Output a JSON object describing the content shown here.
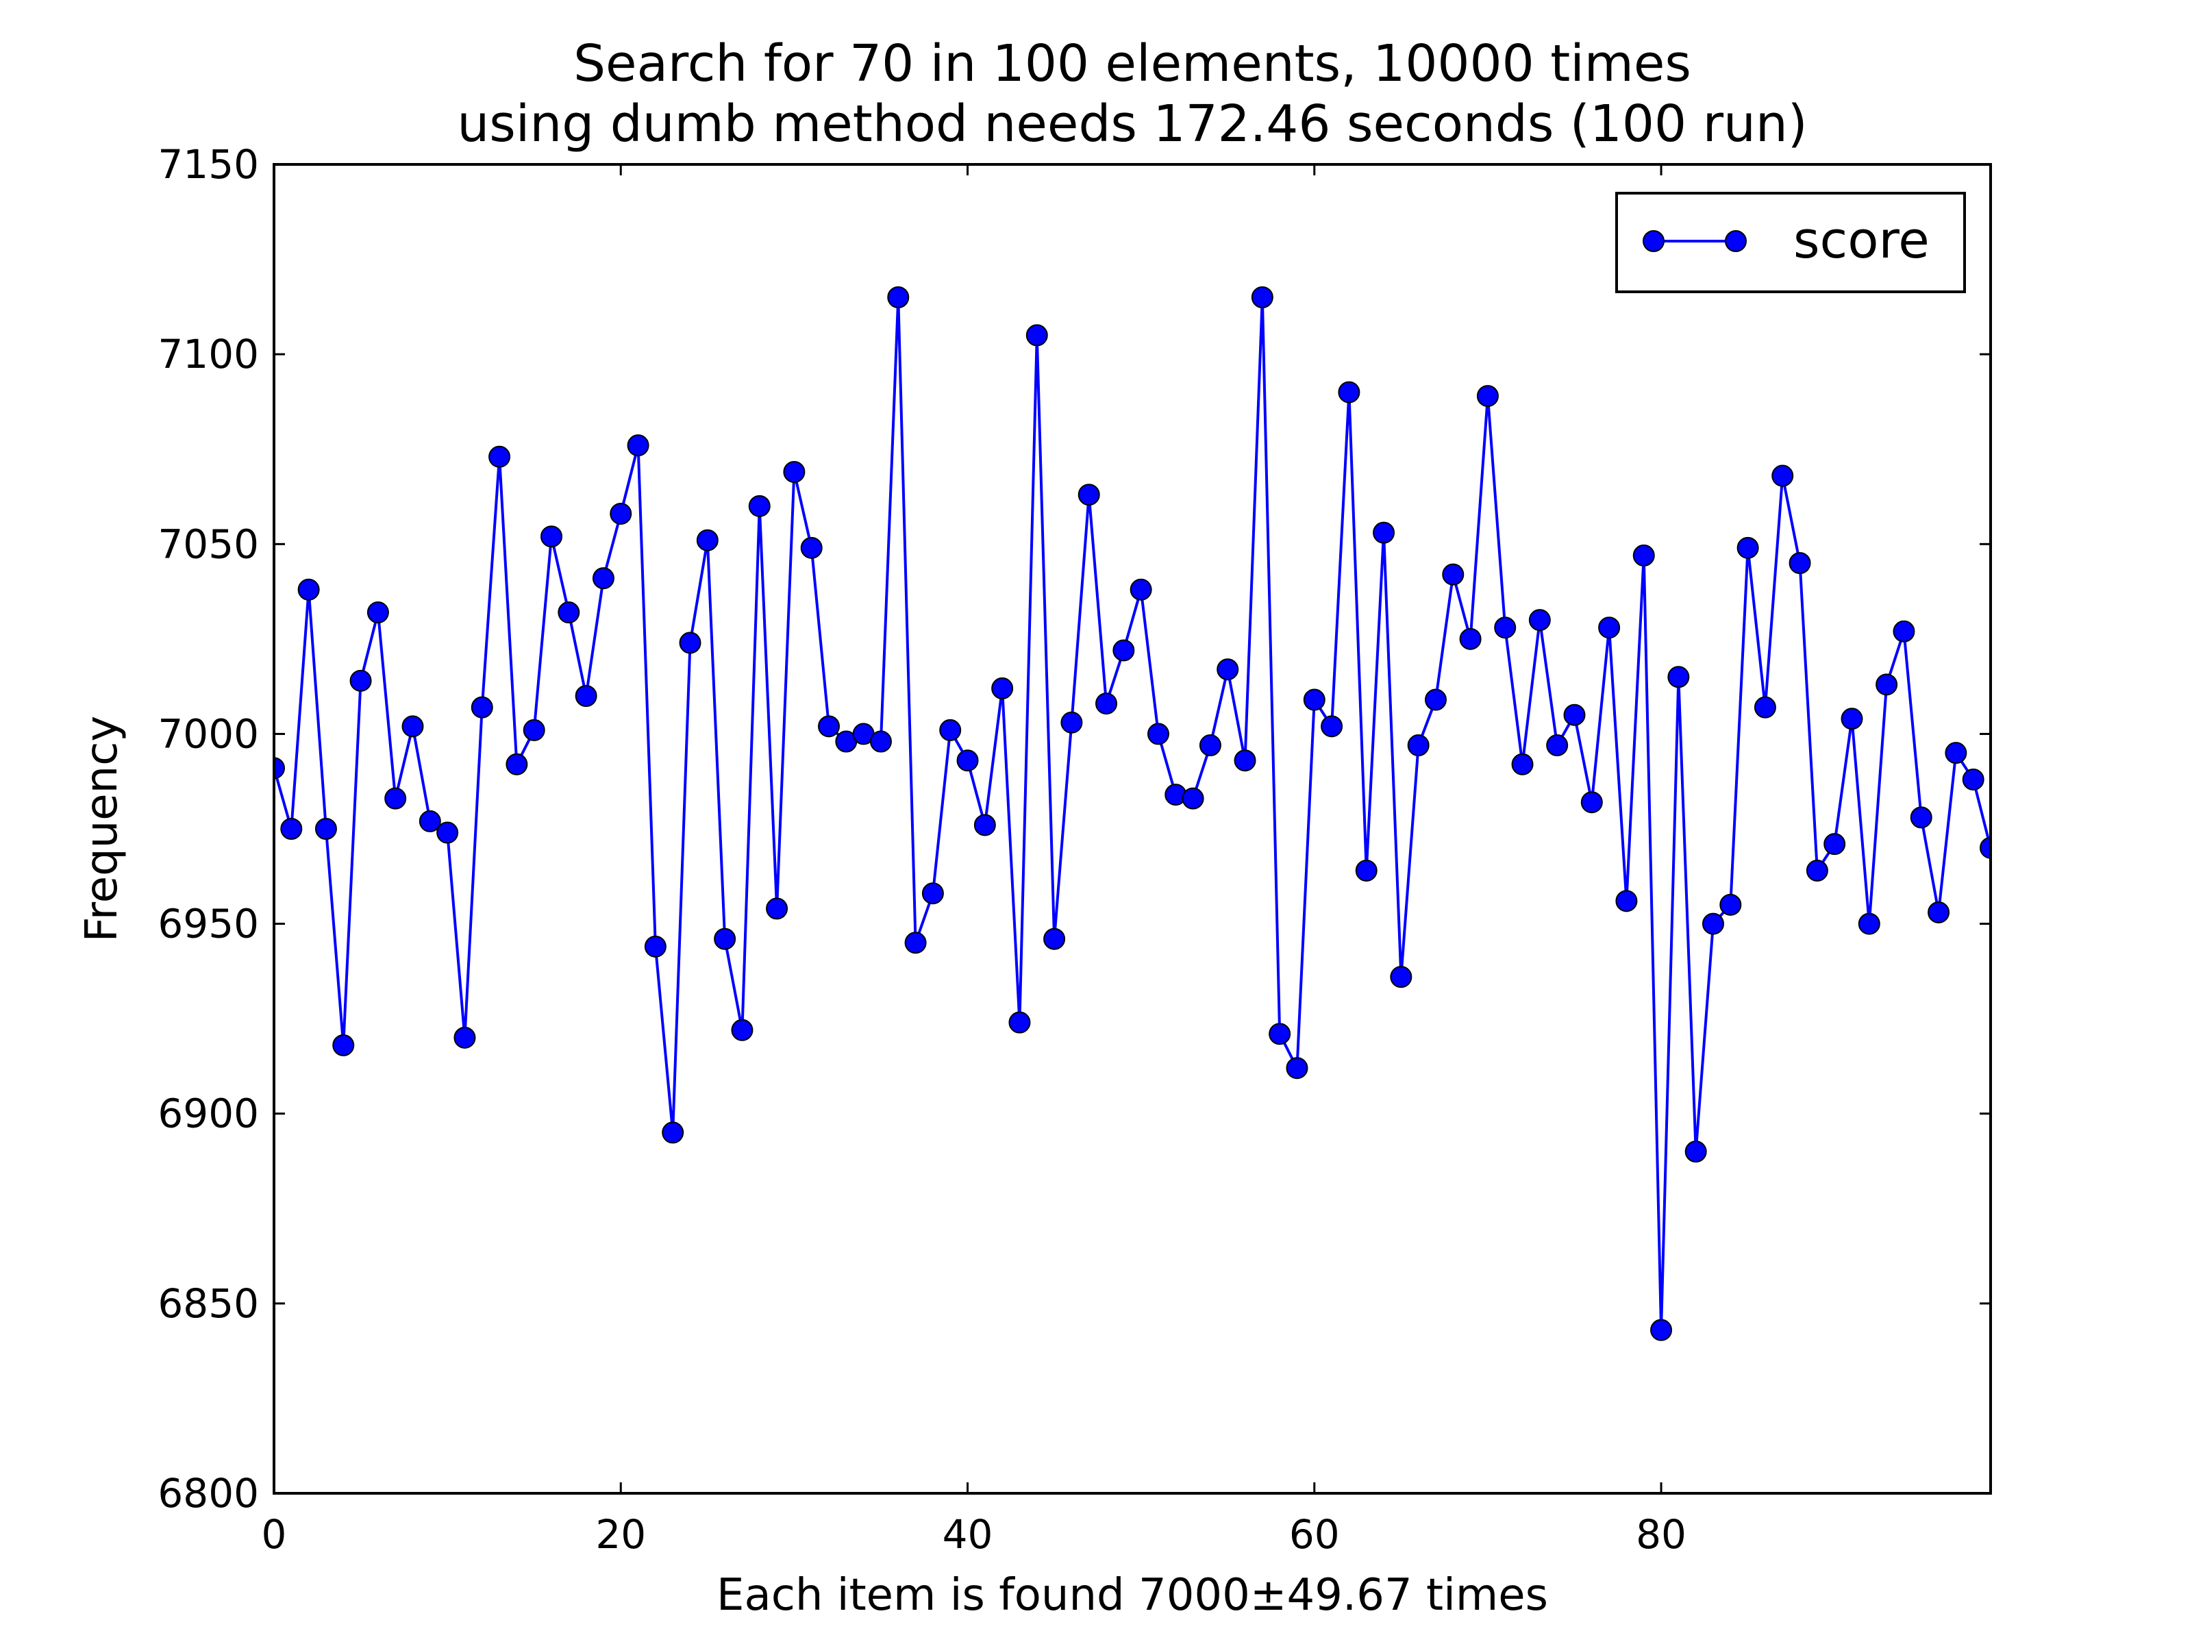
{
  "chart_data": {
    "type": "line",
    "title": "Search for 70 in 100 elements, 10000 times",
    "subtitle": "using dumb method needs 172.46 seconds (100 run)",
    "xlabel": "Each item is found 7000±49.67 times",
    "ylabel": "Frequency",
    "xlim": [
      0,
      99
    ],
    "ylim": [
      6800,
      7150
    ],
    "xticks": [
      0,
      20,
      40,
      60,
      80
    ],
    "yticks": [
      6800,
      6850,
      6900,
      6950,
      7000,
      7050,
      7100,
      7150
    ],
    "xtick_labels": [
      "0",
      "20",
      "40",
      "60",
      "80"
    ],
    "ytick_labels": [
      "6800",
      "6850",
      "6900",
      "6950",
      "7000",
      "7050",
      "7100",
      "7150"
    ],
    "grid": false,
    "legend_position": "top-right",
    "series": [
      {
        "name": "score",
        "color": "#0000ff",
        "marker": "circle",
        "values": [
          6991,
          6975,
          7038,
          6975,
          6918,
          7014,
          7032,
          6983,
          7002,
          6977,
          6974,
          6920,
          7007,
          7073,
          6992,
          7001,
          7052,
          7032,
          7010,
          7041,
          7058,
          7076,
          6944,
          6895,
          7024,
          7051,
          6946,
          6922,
          7060,
          6954,
          7069,
          7049,
          7002,
          6998,
          7000,
          6998,
          7115,
          6945,
          6958,
          7001,
          6993,
          6976,
          7012,
          6924,
          7105,
          6946,
          7003,
          7063,
          7008,
          7022,
          7038,
          7000,
          6984,
          6983,
          6997,
          7017,
          6993,
          7115,
          6921,
          6912,
          7009,
          7002,
          7090,
          6964,
          7053,
          6936,
          6997,
          7009,
          7042,
          7025,
          7089,
          7028,
          6992,
          7030,
          6997,
          7005,
          6982,
          7028,
          6956,
          7047,
          6843,
          7015,
          6890,
          6950,
          6955,
          7049,
          7007,
          7068,
          7045,
          6964,
          6971,
          7004,
          6950,
          7013,
          7027,
          6978,
          6953,
          6995,
          6988,
          6970
        ]
      }
    ]
  }
}
